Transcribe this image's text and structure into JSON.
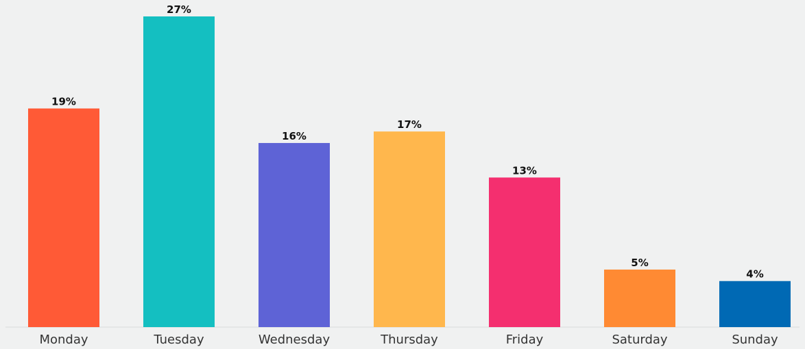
{
  "chart_data": {
    "type": "bar",
    "categories": [
      "Monday",
      "Tuesday",
      "Wednesday",
      "Thursday",
      "Friday",
      "Saturday",
      "Sunday"
    ],
    "values": [
      19,
      27,
      16,
      17,
      13,
      5,
      4
    ],
    "value_labels": [
      "19%",
      "27%",
      "16%",
      "17%",
      "13%",
      "5%",
      "4%"
    ],
    "colors": [
      "#ff5a36",
      "#14bfc1",
      "#5e63d6",
      "#ffb74d",
      "#f42f6f",
      "#ff8a33",
      "#0069b4"
    ],
    "title": "",
    "xlabel": "",
    "ylabel": "",
    "ylim": [
      0,
      27
    ],
    "grid": false,
    "legend": "none"
  }
}
